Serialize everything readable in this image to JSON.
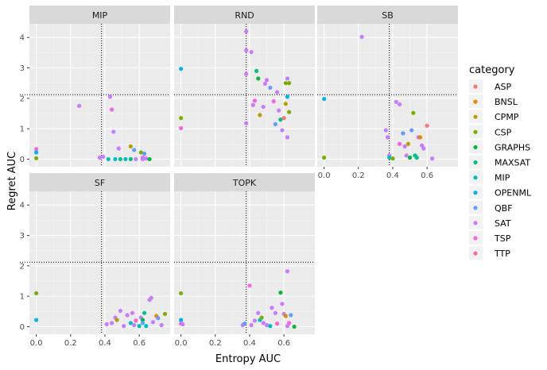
{
  "chart_data": {
    "type": "scatter",
    "xlabel": "Entropy AUC",
    "ylabel": "Regret AUC",
    "xlim": [
      -0.04,
      0.78
    ],
    "ylim": [
      -0.25,
      4.45
    ],
    "x_ticks": [
      "0.0",
      "0.2",
      "0.4",
      "0.6"
    ],
    "x_tick_values": [
      0,
      0.2,
      0.4,
      0.6
    ],
    "y_ticks": [
      "0",
      "1",
      "2",
      "3",
      "4"
    ],
    "y_tick_values": [
      0,
      1,
      2,
      3,
      4
    ],
    "legend_title": "category",
    "legend_position": "right",
    "grid": true,
    "categories": [
      {
        "name": "ASP",
        "color": "#F8766D"
      },
      {
        "name": "BNSL",
        "color": "#DE8C00"
      },
      {
        "name": "CPMP",
        "color": "#B79F00"
      },
      {
        "name": "CSP",
        "color": "#7CAE00"
      },
      {
        "name": "GRAPHS",
        "color": "#00BA38"
      },
      {
        "name": "MAXSAT",
        "color": "#00C08B"
      },
      {
        "name": "MIP",
        "color": "#00BFC4"
      },
      {
        "name": "OPENML",
        "color": "#00B4F0"
      },
      {
        "name": "QBF",
        "color": "#619CFF"
      },
      {
        "name": "SAT",
        "color": "#C77CFF"
      },
      {
        "name": "TSP",
        "color": "#F564E3"
      },
      {
        "name": "TTP",
        "color": "#FF64B0"
      }
    ],
    "vline_x": 0.38,
    "hline_y": 2.12,
    "panels": [
      {
        "name": "MIP",
        "points": [
          {
            "x": 0.0,
            "y": 0.33,
            "c": "TSP"
          },
          {
            "x": 0.0,
            "y": 0.22,
            "c": "OPENML"
          },
          {
            "x": 0.0,
            "y": 0.03,
            "c": "CSP"
          },
          {
            "x": 0.25,
            "y": 1.75,
            "c": "SAT"
          },
          {
            "x": 0.37,
            "y": 0.05,
            "c": "SAT"
          },
          {
            "x": 0.39,
            "y": 0.08,
            "c": "SAT"
          },
          {
            "x": 0.43,
            "y": 2.05,
            "c": "SAT"
          },
          {
            "x": 0.44,
            "y": 1.63,
            "c": "TSP"
          },
          {
            "x": 0.45,
            "y": 0.9,
            "c": "SAT"
          },
          {
            "x": 0.42,
            "y": 0.0,
            "c": "MIP"
          },
          {
            "x": 0.46,
            "y": 0.0,
            "c": "MIP"
          },
          {
            "x": 0.49,
            "y": 0.0,
            "c": "MAXSAT"
          },
          {
            "x": 0.48,
            "y": 0.35,
            "c": "SAT"
          },
          {
            "x": 0.52,
            "y": 0.0,
            "c": "MIP"
          },
          {
            "x": 0.55,
            "y": 0.42,
            "c": "CPMP"
          },
          {
            "x": 0.57,
            "y": 0.3,
            "c": "QBF"
          },
          {
            "x": 0.55,
            "y": 0.0,
            "c": "MAXSAT"
          },
          {
            "x": 0.58,
            "y": 0.0,
            "c": "SAT"
          },
          {
            "x": 0.61,
            "y": 0.22,
            "c": "CSP"
          },
          {
            "x": 0.62,
            "y": 0.05,
            "c": "TSP"
          },
          {
            "x": 0.62,
            "y": 0.0,
            "c": "SAT"
          },
          {
            "x": 0.63,
            "y": 0.18,
            "c": "QBF"
          },
          {
            "x": 0.64,
            "y": 0.02,
            "c": "SAT"
          },
          {
            "x": 0.66,
            "y": 0.0,
            "c": "GRAPHS"
          }
        ]
      },
      {
        "name": "RND",
        "points": [
          {
            "x": 0.0,
            "y": 2.97,
            "c": "OPENML"
          },
          {
            "x": 0.0,
            "y": 1.35,
            "c": "CSP"
          },
          {
            "x": 0.0,
            "y": 1.02,
            "c": "TSP"
          },
          {
            "x": 0.38,
            "y": 4.2,
            "c": "SAT"
          },
          {
            "x": 0.38,
            "y": 3.58,
            "c": "SAT"
          },
          {
            "x": 0.38,
            "y": 2.8,
            "c": "SAT"
          },
          {
            "x": 0.38,
            "y": 1.18,
            "c": "SAT"
          },
          {
            "x": 0.41,
            "y": 3.52,
            "c": "SAT"
          },
          {
            "x": 0.42,
            "y": 1.78,
            "c": "SAT"
          },
          {
            "x": 0.43,
            "y": 1.92,
            "c": "TSP"
          },
          {
            "x": 0.44,
            "y": 2.9,
            "c": "MAXSAT"
          },
          {
            "x": 0.45,
            "y": 2.65,
            "c": "GRAPHS"
          },
          {
            "x": 0.46,
            "y": 1.45,
            "c": "CPMP"
          },
          {
            "x": 0.48,
            "y": 1.72,
            "c": "SAT"
          },
          {
            "x": 0.49,
            "y": 2.48,
            "c": "SAT"
          },
          {
            "x": 0.5,
            "y": 2.6,
            "c": "SAT"
          },
          {
            "x": 0.52,
            "y": 2.35,
            "c": "QBF"
          },
          {
            "x": 0.54,
            "y": 1.9,
            "c": "TSP"
          },
          {
            "x": 0.55,
            "y": 1.15,
            "c": "QBF"
          },
          {
            "x": 0.56,
            "y": 2.2,
            "c": "SAT"
          },
          {
            "x": 0.57,
            "y": 1.6,
            "c": "SAT"
          },
          {
            "x": 0.58,
            "y": 1.3,
            "c": "MAXSAT"
          },
          {
            "x": 0.59,
            "y": 0.95,
            "c": "SAT"
          },
          {
            "x": 0.61,
            "y": 2.5,
            "c": "CSP"
          },
          {
            "x": 0.61,
            "y": 1.82,
            "c": "CPMP"
          },
          {
            "x": 0.62,
            "y": 2.65,
            "c": "SAT"
          },
          {
            "x": 0.62,
            "y": 2.05,
            "c": "OPENML"
          },
          {
            "x": 0.62,
            "y": 0.72,
            "c": "SAT"
          },
          {
            "x": 0.63,
            "y": 2.5,
            "c": "CSP"
          },
          {
            "x": 0.63,
            "y": 1.55,
            "c": "CSP"
          },
          {
            "x": 0.6,
            "y": 1.35,
            "c": "ASP"
          }
        ]
      },
      {
        "name": "SB",
        "points": [
          {
            "x": 0.0,
            "y": 1.98,
            "c": "OPENML"
          },
          {
            "x": 0.0,
            "y": 0.05,
            "c": "CSP"
          },
          {
            "x": 0.22,
            "y": 4.02,
            "c": "SAT"
          },
          {
            "x": 0.36,
            "y": 0.95,
            "c": "SAT"
          },
          {
            "x": 0.37,
            "y": 0.72,
            "c": "SAT"
          },
          {
            "x": 0.38,
            "y": 0.12,
            "c": "SAT"
          },
          {
            "x": 0.38,
            "y": 0.05,
            "c": "MIP"
          },
          {
            "x": 0.4,
            "y": 0.02,
            "c": "CSP"
          },
          {
            "x": 0.42,
            "y": 1.88,
            "c": "SAT"
          },
          {
            "x": 0.44,
            "y": 1.8,
            "c": "SAT"
          },
          {
            "x": 0.44,
            "y": 0.5,
            "c": "TSP"
          },
          {
            "x": 0.46,
            "y": 0.85,
            "c": "QBF"
          },
          {
            "x": 0.47,
            "y": 0.42,
            "c": "SAT"
          },
          {
            "x": 0.48,
            "y": 0.12,
            "c": "SAT"
          },
          {
            "x": 0.49,
            "y": 0.5,
            "c": "CPMP"
          },
          {
            "x": 0.5,
            "y": 0.05,
            "c": "GRAPHS"
          },
          {
            "x": 0.51,
            "y": 0.95,
            "c": "QBF"
          },
          {
            "x": 0.52,
            "y": 1.52,
            "c": "CSP"
          },
          {
            "x": 0.53,
            "y": 0.12,
            "c": "MAXSAT"
          },
          {
            "x": 0.54,
            "y": 0.05,
            "c": "MAXSAT"
          },
          {
            "x": 0.55,
            "y": 0.72,
            "c": "SAT"
          },
          {
            "x": 0.56,
            "y": 0.72,
            "c": "BNSL"
          },
          {
            "x": 0.57,
            "y": 0.45,
            "c": "SAT"
          },
          {
            "x": 0.58,
            "y": 0.35,
            "c": "SAT"
          },
          {
            "x": 0.6,
            "y": 1.1,
            "c": "ASP"
          },
          {
            "x": 0.63,
            "y": 0.02,
            "c": "SAT"
          }
        ]
      },
      {
        "name": "SF",
        "points": [
          {
            "x": 0.0,
            "y": 1.1,
            "c": "CSP"
          },
          {
            "x": 0.0,
            "y": 0.22,
            "c": "OPENML"
          },
          {
            "x": 0.41,
            "y": 0.08,
            "c": "SAT"
          },
          {
            "x": 0.44,
            "y": 0.12,
            "c": "SAT"
          },
          {
            "x": 0.46,
            "y": 0.3,
            "c": "SAT"
          },
          {
            "x": 0.47,
            "y": 0.22,
            "c": "CPMP"
          },
          {
            "x": 0.49,
            "y": 0.52,
            "c": "SAT"
          },
          {
            "x": 0.51,
            "y": 0.02,
            "c": "SAT"
          },
          {
            "x": 0.53,
            "y": 0.38,
            "c": "SAT"
          },
          {
            "x": 0.55,
            "y": 0.12,
            "c": "MIP"
          },
          {
            "x": 0.56,
            "y": 0.45,
            "c": "SAT"
          },
          {
            "x": 0.57,
            "y": 0.05,
            "c": "SAT"
          },
          {
            "x": 0.58,
            "y": 0.2,
            "c": "TSP"
          },
          {
            "x": 0.6,
            "y": 0.02,
            "c": "MIP"
          },
          {
            "x": 0.61,
            "y": 0.3,
            "c": "SAT"
          },
          {
            "x": 0.62,
            "y": 0.22,
            "c": "GRAPHS"
          },
          {
            "x": 0.62,
            "y": 0.12,
            "c": "QBF"
          },
          {
            "x": 0.63,
            "y": 0.45,
            "c": "MAXSAT"
          },
          {
            "x": 0.64,
            "y": 0.02,
            "c": "MIP"
          },
          {
            "x": 0.66,
            "y": 0.88,
            "c": "SAT"
          },
          {
            "x": 0.67,
            "y": 0.95,
            "c": "SAT"
          },
          {
            "x": 0.68,
            "y": 0.15,
            "c": "SAT"
          },
          {
            "x": 0.7,
            "y": 0.35,
            "c": "BNSL"
          },
          {
            "x": 0.71,
            "y": 0.28,
            "c": "QBF"
          },
          {
            "x": 0.73,
            "y": 0.05,
            "c": "SAT"
          },
          {
            "x": 0.75,
            "y": 0.42,
            "c": "CSP"
          }
        ]
      },
      {
        "name": "TOPK",
        "points": [
          {
            "x": 0.0,
            "y": 1.1,
            "c": "CSP"
          },
          {
            "x": 0.0,
            "y": 0.22,
            "c": "OPENML"
          },
          {
            "x": 0.0,
            "y": 0.1,
            "c": "TSP"
          },
          {
            "x": 0.01,
            "y": 0.08,
            "c": "SAT"
          },
          {
            "x": 0.36,
            "y": 0.05,
            "c": "SAT"
          },
          {
            "x": 0.37,
            "y": 0.1,
            "c": "QBF"
          },
          {
            "x": 0.4,
            "y": 1.35,
            "c": "TSP"
          },
          {
            "x": 0.41,
            "y": 0.05,
            "c": "SAT"
          },
          {
            "x": 0.43,
            "y": 0.2,
            "c": "SAT"
          },
          {
            "x": 0.45,
            "y": 0.45,
            "c": "SAT"
          },
          {
            "x": 0.46,
            "y": 0.22,
            "c": "MIP"
          },
          {
            "x": 0.47,
            "y": 0.3,
            "c": "CSP"
          },
          {
            "x": 0.48,
            "y": 0.12,
            "c": "SAT"
          },
          {
            "x": 0.5,
            "y": 0.05,
            "c": "SAT"
          },
          {
            "x": 0.52,
            "y": 0.02,
            "c": "MIP"
          },
          {
            "x": 0.53,
            "y": 0.62,
            "c": "SAT"
          },
          {
            "x": 0.55,
            "y": 0.45,
            "c": "SAT"
          },
          {
            "x": 0.56,
            "y": 0.1,
            "c": "TSP"
          },
          {
            "x": 0.58,
            "y": 1.12,
            "c": "GRAPHS"
          },
          {
            "x": 0.59,
            "y": 0.75,
            "c": "SAT"
          },
          {
            "x": 0.6,
            "y": 0.42,
            "c": "SAT"
          },
          {
            "x": 0.61,
            "y": 0.35,
            "c": "BNSL"
          },
          {
            "x": 0.62,
            "y": 1.82,
            "c": "SAT"
          },
          {
            "x": 0.62,
            "y": 0.02,
            "c": "SAT"
          },
          {
            "x": 0.63,
            "y": 0.12,
            "c": "TSP"
          },
          {
            "x": 0.64,
            "y": 0.38,
            "c": "QBF"
          },
          {
            "x": 0.66,
            "y": 0.0,
            "c": "GRAPHS"
          }
        ]
      }
    ]
  }
}
